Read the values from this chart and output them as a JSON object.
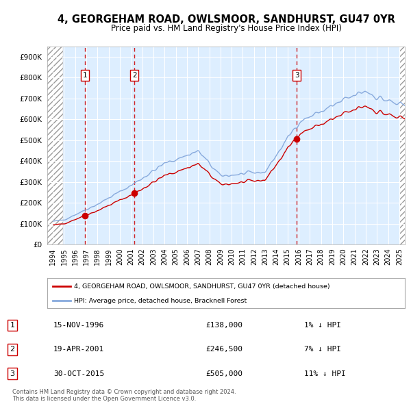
{
  "title1": "4, GEORGEHAM ROAD, OWLSMOOR, SANDHURST, GU47 0YR",
  "title2": "Price paid vs. HM Land Registry's House Price Index (HPI)",
  "ylim": [
    0,
    950000
  ],
  "yticks": [
    0,
    100000,
    200000,
    300000,
    400000,
    500000,
    600000,
    700000,
    800000,
    900000
  ],
  "ytick_labels": [
    "£0",
    "£100K",
    "£200K",
    "£300K",
    "£400K",
    "£500K",
    "£600K",
    "£700K",
    "£800K",
    "£900K"
  ],
  "xlim_start": 1993.5,
  "xlim_end": 2025.5,
  "xticks": [
    1994,
    1995,
    1996,
    1997,
    1998,
    1999,
    2000,
    2001,
    2002,
    2003,
    2004,
    2005,
    2006,
    2007,
    2008,
    2009,
    2010,
    2011,
    2012,
    2013,
    2014,
    2015,
    2016,
    2017,
    2018,
    2019,
    2020,
    2021,
    2022,
    2023,
    2024,
    2025
  ],
  "hpi_color": "#88aadd",
  "sale_color": "#cc0000",
  "vline_color": "#cc0000",
  "marker_color": "#cc0000",
  "sale_points": [
    {
      "date": 1996.88,
      "price": 138000,
      "label": "1"
    },
    {
      "date": 2001.3,
      "price": 246500,
      "label": "2"
    },
    {
      "date": 2015.83,
      "price": 505000,
      "label": "3"
    }
  ],
  "table_rows": [
    {
      "num": "1",
      "date": "15-NOV-1996",
      "price": "£138,000",
      "pct": "1% ↓ HPI"
    },
    {
      "num": "2",
      "date": "19-APR-2001",
      "price": "£246,500",
      "pct": "7% ↓ HPI"
    },
    {
      "num": "3",
      "date": "30-OCT-2015",
      "price": "£505,000",
      "pct": "11% ↓ HPI"
    }
  ],
  "legend_line1": "4, GEORGEHAM ROAD, OWLSMOOR, SANDHURST, GU47 0YR (detached house)",
  "legend_line2": "HPI: Average price, detached house, Bracknell Forest",
  "footnote": "Contains HM Land Registry data © Crown copyright and database right 2024.\nThis data is licensed under the Open Government Licence v3.0.",
  "hatch_color": "#aaaaaa",
  "bg_color": "#ddeeff",
  "hatch_area_end": 1994.92
}
